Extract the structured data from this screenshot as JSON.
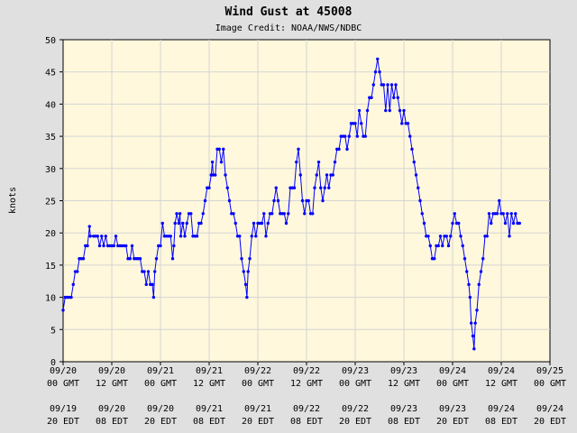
{
  "chart_data": {
    "type": "line",
    "title": "Wind Gust at 45008",
    "subtitle": "Image Credit: NOAA/NWS/NDBC",
    "ylabel": "knots",
    "xlabel": "",
    "ylim": [
      0,
      50
    ],
    "yticks": [
      0,
      5,
      10,
      15,
      20,
      25,
      30,
      35,
      40,
      45,
      50
    ],
    "xlim_hours": [
      0,
      120
    ],
    "grid": true,
    "colors": {
      "background": "#e0e0e0",
      "plot_area": "#fff8dc",
      "grid": "#d4d4d4",
      "series": "#0000ff"
    },
    "xticks": [
      {
        "hour": 0,
        "gmt_date": "09/20",
        "gmt_time": "00 GMT",
        "edt_date": "09/19",
        "edt_time": "20 EDT"
      },
      {
        "hour": 12,
        "gmt_date": "09/20",
        "gmt_time": "12 GMT",
        "edt_date": "09/20",
        "edt_time": "08 EDT"
      },
      {
        "hour": 24,
        "gmt_date": "09/21",
        "gmt_time": "00 GMT",
        "edt_date": "09/20",
        "edt_time": "20 EDT"
      },
      {
        "hour": 36,
        "gmt_date": "09/21",
        "gmt_time": "12 GMT",
        "edt_date": "09/21",
        "edt_time": "08 EDT"
      },
      {
        "hour": 48,
        "gmt_date": "09/22",
        "gmt_time": "00 GMT",
        "edt_date": "09/21",
        "edt_time": "20 EDT"
      },
      {
        "hour": 60,
        "gmt_date": "09/22",
        "gmt_time": "12 GMT",
        "edt_date": "09/22",
        "edt_time": "08 EDT"
      },
      {
        "hour": 72,
        "gmt_date": "09/23",
        "gmt_time": "00 GMT",
        "edt_date": "09/22",
        "edt_time": "20 EDT"
      },
      {
        "hour": 84,
        "gmt_date": "09/23",
        "gmt_time": "12 GMT",
        "edt_date": "09/23",
        "edt_time": "08 EDT"
      },
      {
        "hour": 96,
        "gmt_date": "09/24",
        "gmt_time": "00 GMT",
        "edt_date": "09/23",
        "edt_time": "20 EDT"
      },
      {
        "hour": 108,
        "gmt_date": "09/24",
        "gmt_time": "12 GMT",
        "edt_date": "09/24",
        "edt_time": "08 EDT"
      },
      {
        "hour": 120,
        "gmt_date": "09/25",
        "gmt_time": "00 GMT",
        "edt_date": "09/24",
        "edt_time": "20 EDT"
      }
    ],
    "series": [
      {
        "name": "",
        "points": [
          [
            0,
            8
          ],
          [
            0.5,
            10
          ],
          [
            1,
            10
          ],
          [
            1.5,
            10
          ],
          [
            2,
            10
          ],
          [
            2.5,
            12
          ],
          [
            3,
            14
          ],
          [
            3.5,
            14
          ],
          [
            4,
            16
          ],
          [
            4.5,
            16
          ],
          [
            5,
            16
          ],
          [
            5.5,
            18
          ],
          [
            6,
            18
          ],
          [
            6.5,
            21
          ],
          [
            6.7,
            19.5
          ],
          [
            7.5,
            19.5
          ],
          [
            8,
            19.5
          ],
          [
            8.5,
            19.5
          ],
          [
            9,
            18
          ],
          [
            9.5,
            19.5
          ],
          [
            10,
            18
          ],
          [
            10.5,
            19.5
          ],
          [
            11,
            18
          ],
          [
            11.5,
            18
          ],
          [
            12,
            18
          ],
          [
            12.5,
            18
          ],
          [
            13,
            19.5
          ],
          [
            13.5,
            18
          ],
          [
            14,
            18
          ],
          [
            14.5,
            18
          ],
          [
            15,
            18
          ],
          [
            15.5,
            18
          ],
          [
            16,
            16
          ],
          [
            16.5,
            16
          ],
          [
            17,
            18
          ],
          [
            17.5,
            16
          ],
          [
            18,
            16
          ],
          [
            18.5,
            16
          ],
          [
            19,
            16
          ],
          [
            19.5,
            14
          ],
          [
            20,
            14
          ],
          [
            20.5,
            12
          ],
          [
            21,
            14
          ],
          [
            21.5,
            12
          ],
          [
            22,
            12
          ],
          [
            22.3,
            10
          ],
          [
            22.6,
            14
          ],
          [
            23,
            16
          ],
          [
            23.5,
            18
          ],
          [
            24,
            18
          ],
          [
            24.5,
            21.5
          ],
          [
            25,
            19.5
          ],
          [
            25.5,
            19.5
          ],
          [
            26,
            19.5
          ],
          [
            26.5,
            19.5
          ],
          [
            27,
            16
          ],
          [
            27.3,
            18
          ],
          [
            27.6,
            21.5
          ],
          [
            28,
            23
          ],
          [
            28.5,
            21.5
          ],
          [
            28.8,
            23
          ],
          [
            29,
            19.5
          ],
          [
            29.5,
            21.5
          ],
          [
            30,
            19.5
          ],
          [
            30.5,
            21.5
          ],
          [
            31,
            23
          ],
          [
            31.5,
            23
          ],
          [
            32,
            19.5
          ],
          [
            32.5,
            19.5
          ],
          [
            33,
            19.5
          ],
          [
            33.5,
            21.5
          ],
          [
            34,
            21.5
          ],
          [
            34.5,
            23
          ],
          [
            35,
            25
          ],
          [
            35.5,
            27
          ],
          [
            36,
            27
          ],
          [
            36.5,
            29
          ],
          [
            36.8,
            31
          ],
          [
            37,
            29
          ],
          [
            37.5,
            29
          ],
          [
            38,
            33
          ],
          [
            38.5,
            33
          ],
          [
            39,
            31
          ],
          [
            39.5,
            33
          ],
          [
            40,
            29
          ],
          [
            40.5,
            27
          ],
          [
            41,
            25
          ],
          [
            41.5,
            23
          ],
          [
            42,
            23
          ],
          [
            42.5,
            21.5
          ],
          [
            43,
            19.5
          ],
          [
            43.5,
            19.5
          ],
          [
            44,
            16
          ],
          [
            44.5,
            14
          ],
          [
            45,
            12
          ],
          [
            45.3,
            10
          ],
          [
            45.6,
            14
          ],
          [
            46,
            16
          ],
          [
            46.5,
            19.5
          ],
          [
            47,
            21.5
          ],
          [
            47.5,
            19.5
          ],
          [
            48,
            21.5
          ],
          [
            48.5,
            21.5
          ],
          [
            49,
            21.5
          ],
          [
            49.5,
            23
          ],
          [
            50,
            19.5
          ],
          [
            50.5,
            21.5
          ],
          [
            51,
            23
          ],
          [
            51.5,
            23
          ],
          [
            52,
            25
          ],
          [
            52.5,
            27
          ],
          [
            53,
            25
          ],
          [
            53.5,
            23
          ],
          [
            54,
            23
          ],
          [
            54.5,
            23
          ],
          [
            55,
            21.5
          ],
          [
            55.5,
            23
          ],
          [
            56,
            27
          ],
          [
            56.5,
            27
          ],
          [
            57,
            27
          ],
          [
            57.5,
            31
          ],
          [
            58,
            33
          ],
          [
            58.5,
            29
          ],
          [
            59,
            25
          ],
          [
            59.5,
            23
          ],
          [
            60,
            25
          ],
          [
            60.5,
            25
          ],
          [
            61,
            23
          ],
          [
            61.5,
            23
          ],
          [
            62,
            27
          ],
          [
            62.5,
            29
          ],
          [
            63,
            31
          ],
          [
            63.5,
            27
          ],
          [
            64,
            25
          ],
          [
            64.5,
            27
          ],
          [
            65,
            29
          ],
          [
            65.5,
            27
          ],
          [
            66,
            29
          ],
          [
            66.5,
            29
          ],
          [
            67,
            31
          ],
          [
            67.5,
            33
          ],
          [
            68,
            33
          ],
          [
            68.5,
            35
          ],
          [
            69,
            35
          ],
          [
            69.5,
            35
          ],
          [
            70,
            33
          ],
          [
            70.5,
            35
          ],
          [
            71,
            37
          ],
          [
            71.5,
            37
          ],
          [
            72,
            37
          ],
          [
            72.5,
            35
          ],
          [
            73,
            39
          ],
          [
            73.5,
            37
          ],
          [
            74,
            35
          ],
          [
            74.5,
            35
          ],
          [
            75,
            39
          ],
          [
            75.5,
            41
          ],
          [
            76,
            41
          ],
          [
            76.5,
            43
          ],
          [
            77,
            45
          ],
          [
            77.5,
            47
          ],
          [
            78,
            45
          ],
          [
            78.5,
            43
          ],
          [
            79,
            43
          ],
          [
            79.5,
            39
          ],
          [
            80,
            43
          ],
          [
            80.5,
            39
          ],
          [
            81,
            43
          ],
          [
            81.5,
            41
          ],
          [
            82,
            43
          ],
          [
            82.5,
            41
          ],
          [
            83,
            39
          ],
          [
            83.5,
            37
          ],
          [
            84,
            39
          ],
          [
            84.5,
            37
          ],
          [
            85,
            37
          ],
          [
            85.5,
            35
          ],
          [
            86,
            33
          ],
          [
            86.5,
            31
          ],
          [
            87,
            29
          ],
          [
            87.5,
            27
          ],
          [
            88,
            25
          ],
          [
            88.5,
            23
          ],
          [
            89,
            21.5
          ],
          [
            89.5,
            19.5
          ],
          [
            90,
            19.5
          ],
          [
            90.5,
            18
          ],
          [
            91,
            16
          ],
          [
            91.5,
            16
          ],
          [
            92,
            18
          ],
          [
            92.5,
            18
          ],
          [
            93,
            19.5
          ],
          [
            93.5,
            18
          ],
          [
            94,
            19.5
          ],
          [
            94.5,
            19.5
          ],
          [
            95,
            18
          ],
          [
            95.5,
            19.5
          ],
          [
            96,
            21.5
          ],
          [
            96.5,
            23
          ],
          [
            97,
            21.5
          ],
          [
            97.5,
            21.5
          ],
          [
            98,
            19.5
          ],
          [
            98.5,
            18
          ],
          [
            99,
            16
          ],
          [
            99.5,
            14
          ],
          [
            100,
            12
          ],
          [
            100.3,
            10
          ],
          [
            100.6,
            6
          ],
          [
            101,
            4
          ],
          [
            101.3,
            2
          ],
          [
            101.6,
            6
          ],
          [
            102,
            8
          ],
          [
            102.5,
            12
          ],
          [
            103,
            14
          ],
          [
            103.5,
            16
          ],
          [
            104,
            19.5
          ],
          [
            104.5,
            19.5
          ],
          [
            105,
            23
          ],
          [
            105.5,
            21.5
          ],
          [
            106,
            23
          ],
          [
            106.5,
            23
          ],
          [
            107,
            23
          ],
          [
            107.5,
            25
          ],
          [
            108,
            23
          ],
          [
            108.5,
            23
          ],
          [
            109,
            21.5
          ],
          [
            109.5,
            23
          ],
          [
            110,
            19.5
          ],
          [
            110.5,
            23
          ],
          [
            111,
            21.5
          ],
          [
            111.5,
            23
          ],
          [
            112,
            21.5
          ],
          [
            112.5,
            21.5
          ]
        ]
      }
    ]
  }
}
